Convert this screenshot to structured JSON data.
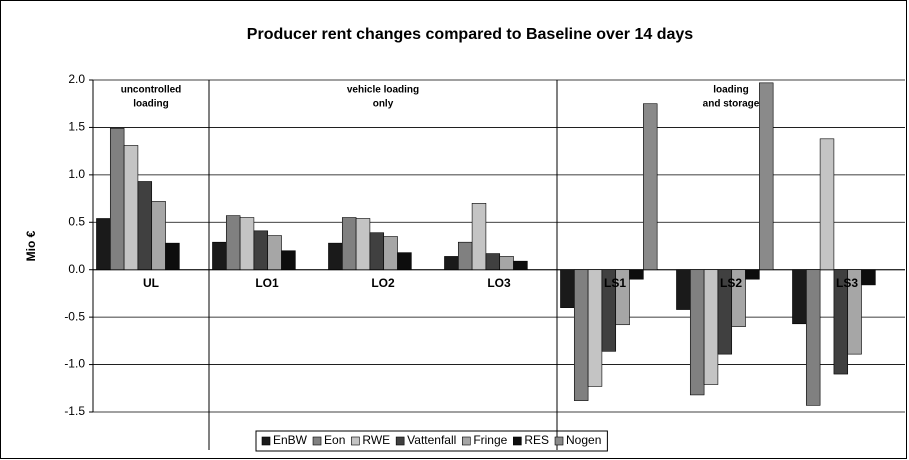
{
  "chart_data": {
    "type": "bar",
    "title": "Producer rent changes compared to Baseline over 14 days",
    "y_label": "Mio €",
    "categories": [
      "UL",
      "LO1",
      "LO2",
      "LO3",
      "LS1",
      "LS2",
      "LS3"
    ],
    "series": [
      {
        "name": "EnBW",
        "color": "#1a1a1a",
        "values": [
          0.54,
          0.29,
          0.28,
          0.14,
          -0.4,
          -0.42,
          -0.57
        ]
      },
      {
        "name": "Eon",
        "color": "#808080",
        "values": [
          1.49,
          0.57,
          0.55,
          0.29,
          -1.38,
          -1.32,
          -1.43
        ]
      },
      {
        "name": "RWE",
        "color": "#c4c4c4",
        "values": [
          1.31,
          0.55,
          0.54,
          0.7,
          -1.23,
          -1.21,
          1.38
        ]
      },
      {
        "name": "Vattenfall",
        "color": "#404040",
        "values": [
          0.93,
          0.41,
          0.39,
          0.17,
          -0.86,
          -0.89,
          -1.1
        ]
      },
      {
        "name": "Fringe",
        "color": "#a6a6a6",
        "values": [
          0.72,
          0.36,
          0.35,
          0.14,
          -0.58,
          -0.6,
          -0.89
        ]
      },
      {
        "name": "RES",
        "color": "#0d0d0d",
        "values": [
          0.28,
          0.2,
          0.18,
          0.09,
          -0.1,
          -0.1,
          -0.16
        ]
      },
      {
        "name": "Nogen",
        "color": "#8a8a8a",
        "values": [
          null,
          null,
          null,
          null,
          1.75,
          1.97,
          null
        ]
      }
    ],
    "annotations": [
      {
        "text": [
          "uncontrolled",
          "loading"
        ]
      },
      {
        "text": [
          "vehicle loading",
          "only"
        ]
      },
      {
        "text": [
          "loading",
          "and storage"
        ]
      }
    ],
    "ylim": [
      -1.5,
      2.0
    ],
    "yticks": [
      {
        "value": -1.5,
        "label": "-1.5"
      },
      {
        "value": -1.0,
        "label": "-1.0"
      },
      {
        "value": -0.5,
        "label": "-0.5"
      },
      {
        "value": 0.0,
        "label": "0.0"
      },
      {
        "value": 0.5,
        "label": "0.5"
      },
      {
        "value": 1.0,
        "label": "1.0"
      },
      {
        "value": 1.5,
        "label": "1.5"
      },
      {
        "value": 2.0,
        "label": "2.0"
      }
    ],
    "grid": true,
    "legend": "bottom"
  }
}
